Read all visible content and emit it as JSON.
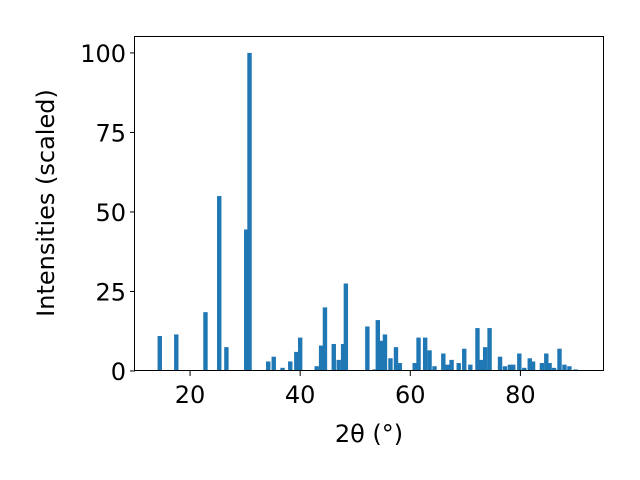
{
  "chart_data": {
    "type": "bar",
    "xlabel": "2θ (°)",
    "ylabel": "Intensities (scaled)",
    "xlim": [
      10,
      95
    ],
    "ylim": [
      0,
      105
    ],
    "x_ticks": [
      20,
      40,
      60,
      80
    ],
    "y_ticks": [
      0,
      25,
      50,
      75,
      100
    ],
    "grid": false,
    "bar_color": "#1f77b4",
    "bar_width": 0.8,
    "x": [
      14.5,
      17.5,
      22.8,
      25.3,
      26.6,
      30.2,
      30.8,
      34.2,
      35.2,
      36.8,
      38.2,
      39.3,
      40.0,
      43.0,
      43.8,
      44.5,
      46.1,
      47.0,
      47.8,
      48.3,
      52.2,
      53.5,
      54.1,
      54.7,
      55.4,
      56.4,
      57.4,
      58.1,
      60.8,
      61.5,
      62.7,
      63.5,
      64.4,
      66.0,
      66.8,
      67.5,
      68.8,
      69.8,
      70.9,
      72.2,
      72.9,
      73.6,
      74.4,
      76.3,
      77.2,
      78.1,
      78.7,
      79.8,
      80.7,
      81.7,
      82.3,
      83.9,
      84.7,
      85.3,
      86.1,
      87.1,
      88.0,
      88.9,
      90.0
    ],
    "values": [
      11,
      11.5,
      18.5,
      55,
      7.5,
      44.5,
      100,
      3,
      4.5,
      1,
      3,
      6,
      10.5,
      1.5,
      8,
      20,
      8.5,
      3.5,
      8.5,
      27.5,
      14,
      0.5,
      16,
      9.5,
      11.5,
      4,
      7.5,
      2.5,
      2.5,
      10.5,
      10.5,
      6.5,
      1.5,
      5.5,
      2,
      3.5,
      2.5,
      7,
      2,
      13.5,
      3.5,
      7.5,
      13.5,
      4.5,
      1.5,
      2,
      2,
      5.5,
      1,
      4,
      3,
      2.5,
      5.5,
      2.5,
      1,
      7,
      2,
      1.5,
      0.5
    ]
  }
}
